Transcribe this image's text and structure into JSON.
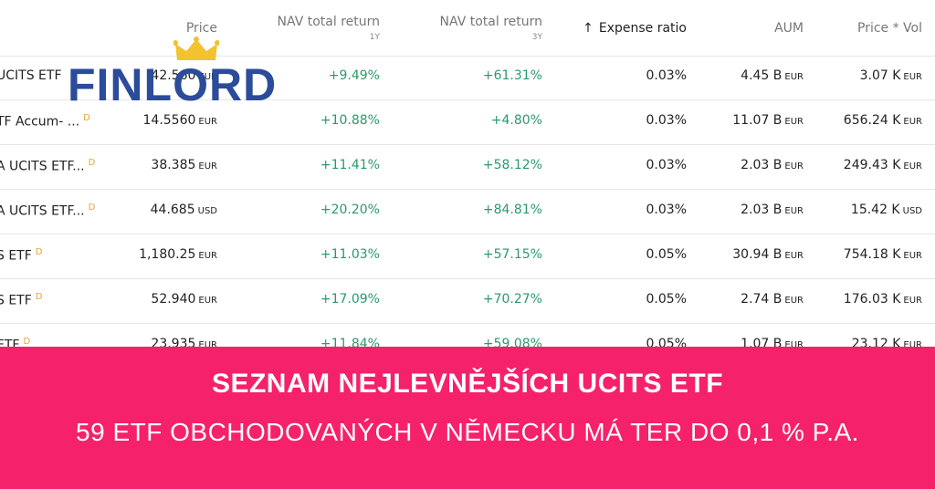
{
  "logo": "FINLORD",
  "table": {
    "headers": {
      "price": "Price",
      "nav1y": "NAV total return",
      "nav1y_sub": "1Y",
      "nav3y": "NAV total return",
      "nav3y_sub": "3Y",
      "expense": "Expense ratio",
      "aum": "AUM",
      "pricevol": "Price * Vol"
    },
    "rows": [
      {
        "name": "UCITS ETF",
        "price": {
          "value": "42.560",
          "unit": "EUR"
        },
        "nav1y": "+9.49%",
        "nav3y": "+61.31%",
        "expense": "0.03%",
        "aum": {
          "value": "4.45 B",
          "unit": "EUR"
        },
        "pricevol": {
          "value": "3.07 K",
          "unit": "EUR"
        }
      },
      {
        "name": "TF Accum- ...",
        "badge": "D",
        "price": {
          "value": "14.5560",
          "unit": "EUR"
        },
        "nav1y": "+10.88%",
        "nav3y": "+4.80%",
        "expense": "0.03%",
        "aum": {
          "value": "11.07 B",
          "unit": "EUR"
        },
        "pricevol": {
          "value": "656.24 K",
          "unit": "EUR"
        }
      },
      {
        "name": "A UCITS ETF...",
        "badge": "D",
        "price": {
          "value": "38.385",
          "unit": "EUR"
        },
        "nav1y": "+11.41%",
        "nav3y": "+58.12%",
        "expense": "0.03%",
        "aum": {
          "value": "2.03 B",
          "unit": "EUR"
        },
        "pricevol": {
          "value": "249.43 K",
          "unit": "EUR"
        }
      },
      {
        "name": "A UCITS ETF...",
        "badge": "D",
        "price": {
          "value": "44.685",
          "unit": "USD"
        },
        "nav1y": "+20.20%",
        "nav3y": "+84.81%",
        "expense": "0.03%",
        "aum": {
          "value": "2.03 B",
          "unit": "EUR"
        },
        "pricevol": {
          "value": "15.42 K",
          "unit": "USD"
        }
      },
      {
        "name": "S ETF",
        "badge": "D",
        "price": {
          "value": "1,180.25",
          "unit": "EUR"
        },
        "nav1y": "+11.03%",
        "nav3y": "+57.15%",
        "expense": "0.05%",
        "aum": {
          "value": "30.94 B",
          "unit": "EUR"
        },
        "pricevol": {
          "value": "754.18 K",
          "unit": "EUR"
        }
      },
      {
        "name": "S ETF",
        "badge": "D",
        "price": {
          "value": "52.940",
          "unit": "EUR"
        },
        "nav1y": "+17.09%",
        "nav3y": "+70.27%",
        "expense": "0.05%",
        "aum": {
          "value": "2.74 B",
          "unit": "EUR"
        },
        "pricevol": {
          "value": "176.03 K",
          "unit": "EUR"
        }
      },
      {
        "name": "ETF",
        "badge": "D",
        "price": {
          "value": "23.935",
          "unit": "EUR"
        },
        "nav1y": "+11.84%",
        "nav3y": "+59.08%",
        "expense": "0.05%",
        "aum": {
          "value": "1.07 B",
          "unit": "EUR"
        },
        "pricevol": {
          "value": "23.12 K",
          "unit": "EUR"
        }
      }
    ]
  },
  "banner": {
    "title": "SEZNAM NEJLEVNĚJŠÍCH UCITS ETF",
    "subtitle": "59 ETF OBCHODOVANÝCH V NĚMECKU MÁ TER DO 0,1 % P.A."
  }
}
